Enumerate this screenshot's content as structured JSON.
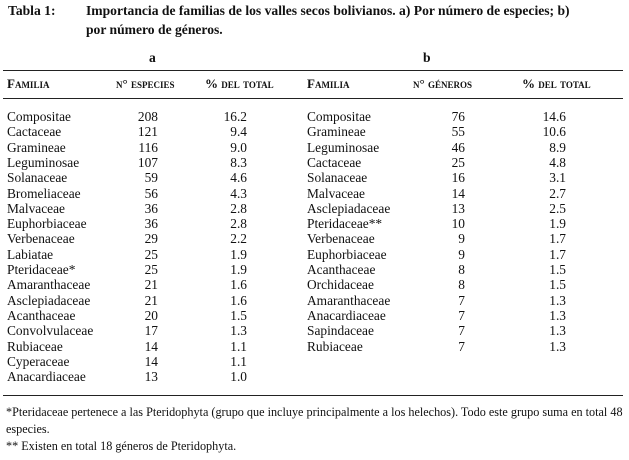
{
  "caption": {
    "label": "Tabla 1:",
    "line1": "Importancia de familias de los valles secos bolivianos. a) Por número de especies; b)",
    "line2": "por número de géneros."
  },
  "section_a": {
    "letter": "a",
    "headers": [
      "Familia",
      "n° especies",
      "% del total"
    ],
    "rows": [
      [
        "Compositae",
        "208",
        "16.2"
      ],
      [
        "Cactaceae",
        "121",
        "9.4"
      ],
      [
        "Gramineae",
        "116",
        "9.0"
      ],
      [
        "Leguminosae",
        "107",
        "8.3"
      ],
      [
        "Solanaceae",
        "59",
        "4.6"
      ],
      [
        "Bromeliaceae",
        "56",
        "4.3"
      ],
      [
        "Malvaceae",
        "36",
        "2.8"
      ],
      [
        "Euphorbiaceae",
        "36",
        "2.8"
      ],
      [
        "Verbenaceae",
        "29",
        "2.2"
      ],
      [
        "Labiatae",
        "25",
        "1.9"
      ],
      [
        "Pteridaceae*",
        "25",
        "1.9"
      ],
      [
        "Amaranthaceae",
        "21",
        "1.6"
      ],
      [
        "Asclepiadaceae",
        "21",
        "1.6"
      ],
      [
        "Acanthaceae",
        "20",
        "1.5"
      ],
      [
        "Convolvulaceae",
        "17",
        "1.3"
      ],
      [
        "Rubiaceae",
        "14",
        "1.1"
      ],
      [
        "Cyperaceae",
        "14",
        "1.1"
      ],
      [
        "Anacardiaceae",
        "13",
        "1.0"
      ]
    ]
  },
  "section_b": {
    "letter": "b",
    "headers": [
      "Familia",
      "n° géneros",
      "% del total"
    ],
    "rows": [
      [
        "Compositae",
        "76",
        "14.6"
      ],
      [
        "Gramineae",
        "55",
        "10.6"
      ],
      [
        "Leguminosae",
        "46",
        "8.9"
      ],
      [
        "Cactaceae",
        "25",
        "4.8"
      ],
      [
        "Solanaceae",
        "16",
        "3.1"
      ],
      [
        "Malvaceae",
        "14",
        "2.7"
      ],
      [
        "Asclepiadaceae",
        "13",
        "2.5"
      ],
      [
        "Pteridaceae**",
        "10",
        "1.9"
      ],
      [
        "Verbenaceae",
        "9",
        "1.7"
      ],
      [
        "Euphorbiaceae",
        "9",
        "1.7"
      ],
      [
        "Acanthaceae",
        "8",
        "1.5"
      ],
      [
        "Orchidaceae",
        "8",
        "1.5"
      ],
      [
        "Amaranthaceae",
        "7",
        "1.3"
      ],
      [
        "Anacardiaceae",
        "7",
        "1.3"
      ],
      [
        "Sapindaceae",
        "7",
        "1.3"
      ],
      [
        "Rubiaceae",
        "7",
        "1.3"
      ]
    ]
  },
  "footnotes": [
    "*Pteridaceae pertenece a las Pteridophyta (grupo que incluye principalmente a los helechos). Todo este grupo suma en total 48 especies.",
    "** Existen en total 18 géneros de Pteridophyta."
  ]
}
